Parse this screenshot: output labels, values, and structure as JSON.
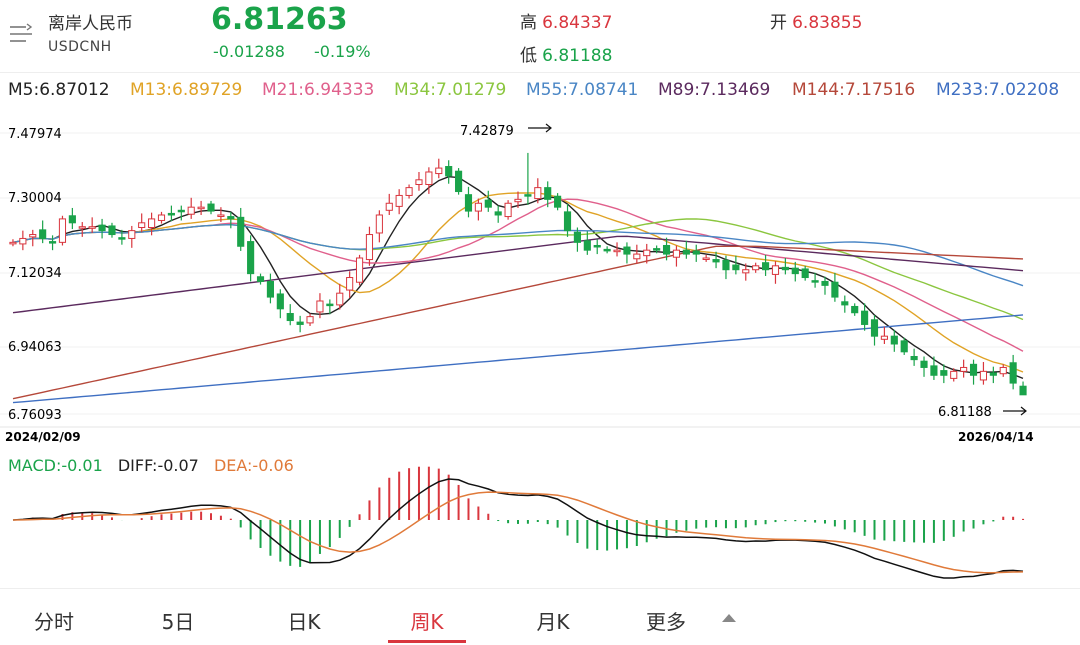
{
  "header": {
    "name": "离岸人民币",
    "code": "USDCNH",
    "price": "6.81263",
    "change": "-0.01288",
    "change_pct": "-0.19%",
    "high_label": "高",
    "high_value": "6.84337",
    "low_label": "低",
    "low_value": "6.81188",
    "open_label": "开",
    "open_value": "6.83855",
    "menu_icon": "menu-lines-icon"
  },
  "ma": [
    {
      "text": "M5:6.87012",
      "color": "#222222"
    },
    {
      "text": "M13:6.89729",
      "color": "#e0a326"
    },
    {
      "text": "M21:6.94333",
      "color": "#e0608c"
    },
    {
      "text": "M34:7.01279",
      "color": "#8bc63f"
    },
    {
      "text": "M55:7.08741",
      "color": "#4a86c5"
    },
    {
      "text": "M89:7.13469",
      "color": "#5b2a5e"
    },
    {
      "text": "M144:7.17516",
      "color": "#b5483a"
    },
    {
      "text": "M233:7.02208",
      "color": "#3f6fc2"
    }
  ],
  "colors": {
    "up": "#d9363e",
    "down": "#1aa34a",
    "accent": "#d9363e"
  },
  "chart_data": [
    {
      "type": "candlestick",
      "title": "离岸人民币 USDCNH 周K",
      "y_ticks": [
        "7.47974",
        "7.30004",
        "7.12034",
        "6.94063",
        "6.76093"
      ],
      "ylim": [
        6.76093,
        7.47974
      ],
      "x_start_label": "2024/02/09",
      "x_end_label": "2026/04/14",
      "high_annotation": "7.42879",
      "low_annotation": "6.81188",
      "close": [
        7.2,
        7.21,
        7.22,
        7.21,
        7.2,
        7.26,
        7.25,
        7.24,
        7.24,
        7.23,
        7.22,
        7.21,
        7.23,
        7.25,
        7.26,
        7.27,
        7.27,
        7.28,
        7.29,
        7.29,
        7.28,
        7.27,
        7.26,
        7.19,
        7.12,
        7.1,
        7.06,
        7.03,
        7.0,
        6.99,
        7.01,
        7.05,
        7.04,
        7.07,
        7.11,
        7.16,
        7.22,
        7.27,
        7.3,
        7.32,
        7.34,
        7.36,
        7.38,
        7.39,
        7.37,
        7.33,
        7.28,
        7.3,
        7.29,
        7.27,
        7.3,
        7.31,
        7.32,
        7.34,
        7.31,
        7.29,
        7.23,
        7.2,
        7.18,
        7.19,
        7.18,
        7.18,
        7.17,
        7.17,
        7.18,
        7.18,
        7.17,
        7.18,
        7.17,
        7.17,
        7.16,
        7.15,
        7.13,
        7.13,
        7.13,
        7.14,
        7.13,
        7.14,
        7.13,
        7.12,
        7.11,
        7.1,
        7.09,
        7.06,
        7.04,
        7.02,
        6.99,
        6.96,
        6.96,
        6.94,
        6.92,
        6.9,
        6.88,
        6.86,
        6.86,
        6.87,
        6.88,
        6.86,
        6.87,
        6.86,
        6.88,
        6.84,
        6.81
      ],
      "series": [
        {
          "name": "M5",
          "color": "#222222"
        },
        {
          "name": "M13",
          "color": "#e0a326"
        },
        {
          "name": "M21",
          "color": "#e0608c"
        },
        {
          "name": "M34",
          "color": "#8bc63f"
        },
        {
          "name": "M55",
          "color": "#4a86c5"
        },
        {
          "name": "M89",
          "color": "#5b2a5e"
        },
        {
          "name": "M144",
          "color": "#b5483a"
        },
        {
          "name": "M233",
          "color": "#3f6fc2"
        }
      ]
    },
    {
      "type": "macd",
      "labels": {
        "macd": "MACD:-0.01",
        "diff": "DIFF:-0.07",
        "dea": "DEA:-0.06"
      },
      "colors": {
        "diff": "#111111",
        "dea": "#e07a3a",
        "pos": "#d9363e",
        "neg": "#1aa34a"
      }
    }
  ],
  "tabs": [
    {
      "label": "分时"
    },
    {
      "label": "5日"
    },
    {
      "label": "日K"
    },
    {
      "label": "周K"
    },
    {
      "label": "月K"
    },
    {
      "label": "更多"
    }
  ],
  "active_tab": "周K"
}
